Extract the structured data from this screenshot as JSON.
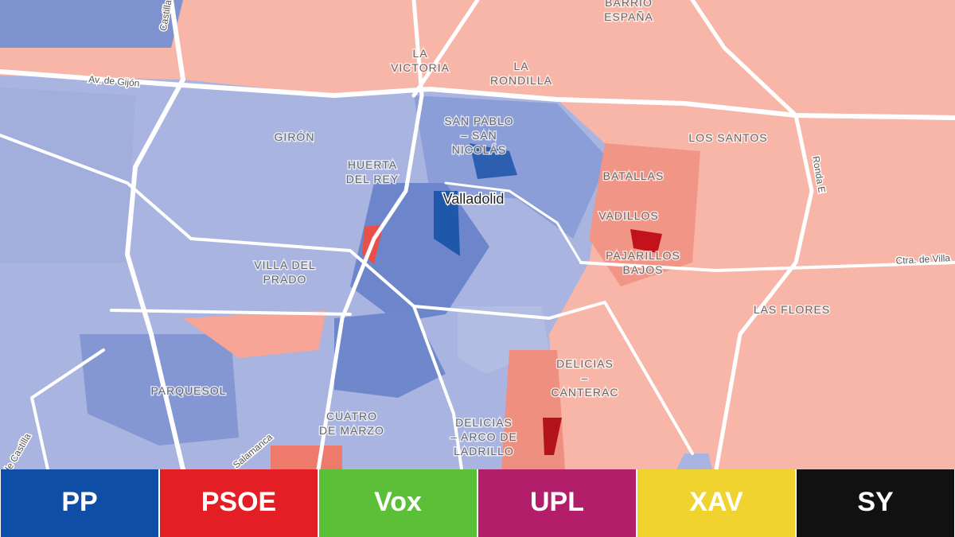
{
  "map": {
    "labels": [
      {
        "lines": [
          "Castilla"
        ]
      },
      {
        "lines": [
          "Av. de Gijón"
        ]
      },
      {
        "lines": [
          "LA",
          "VICTORIA"
        ]
      },
      {
        "lines": [
          "BARRIO",
          "ESPAÑA"
        ]
      },
      {
        "lines": [
          "LA",
          "RONDILLA"
        ]
      },
      {
        "lines": [
          "GIRÓN"
        ]
      },
      {
        "lines": [
          "SAN PABLO",
          "– SAN",
          "NICOLÁS"
        ]
      },
      {
        "lines": [
          "HUERTA",
          "DEL REY"
        ]
      },
      {
        "lines": [
          "Valladolid"
        ]
      },
      {
        "lines": [
          "LOS SANTOS"
        ]
      },
      {
        "lines": [
          "Ronda E"
        ]
      },
      {
        "lines": [
          "BATALLAS"
        ]
      },
      {
        "lines": [
          "VADILLOS"
        ]
      },
      {
        "lines": [
          "PAJARILLOS",
          "BAJOS"
        ]
      },
      {
        "lines": [
          "Ctra. de Villa"
        ]
      },
      {
        "lines": [
          "VILLA DEL",
          "PRADO"
        ]
      },
      {
        "lines": [
          "LAS FLORES"
        ]
      },
      {
        "lines": [
          "DELICIAS",
          "–",
          "CANTERAC"
        ]
      },
      {
        "lines": [
          "PARQUESOL"
        ]
      },
      {
        "lines": [
          "CUATRO",
          "DE MARZO"
        ]
      },
      {
        "lines": [
          "DELICIAS",
          "– ARCO DE",
          "LADRILLO"
        ]
      },
      {
        "lines": [
          "Salamanca"
        ]
      },
      {
        "lines": [
          "de Castilla"
        ]
      }
    ]
  },
  "legend": [
    {
      "name": "PP",
      "color": "#0e4ea6"
    },
    {
      "name": "PSOE",
      "color": "#e31e25"
    },
    {
      "name": "Vox",
      "color": "#5bbf38"
    },
    {
      "name": "UPL",
      "color": "#b21e69"
    },
    {
      "name": "XAV",
      "color": "#f1d32f"
    },
    {
      "name": "SY",
      "color": "#111111"
    }
  ]
}
